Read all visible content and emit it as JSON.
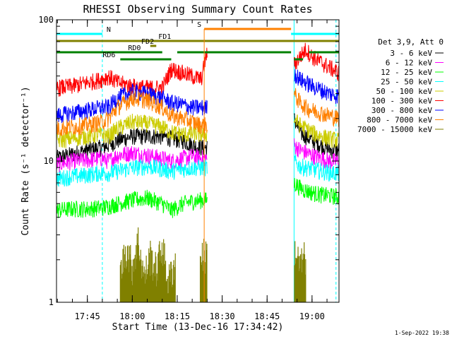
{
  "chart_data": {
    "type": "line",
    "title": "RHESSI Observing Summary Count Rates",
    "xlabel": "Start Time (13-Dec-16 17:34:42)",
    "ylabel": "Count Rate (s⁻¹ detector⁻¹)",
    "y_scale": "log",
    "ylim": [
      1,
      100
    ],
    "y_ticks": [
      {
        "value": 1,
        "label": "1"
      },
      {
        "value": 10,
        "label": "10"
      },
      {
        "value": 100,
        "label": "100"
      }
    ],
    "xlim": [
      "17:34:42",
      "19:09"
    ],
    "x_ticks": [
      {
        "value": "17:45",
        "label": "17:45"
      },
      {
        "value": "18:00",
        "label": "18:00"
      },
      {
        "value": "18:15",
        "label": "18:15"
      },
      {
        "value": "18:30",
        "label": "18:30"
      },
      {
        "value": "18:45",
        "label": "18:45"
      },
      {
        "value": "19:00",
        "label": "19:00"
      }
    ],
    "legend_header": "Det 3,9, Att 0",
    "legend_position": "right",
    "gaps": [
      {
        "from": "18:25",
        "to": "18:54"
      }
    ],
    "series": [
      {
        "name": "3 - 6 keV",
        "color": "#000000",
        "x": [
          "17:34:42",
          "17:40",
          "17:45",
          "17:50",
          "17:52",
          "17:55",
          "18:00",
          "18:05",
          "18:10",
          "18:13",
          "18:17",
          "18:20",
          "18:23",
          "18:25",
          "18:54",
          "18:56",
          "18:58",
          "19:00",
          "19:03",
          "19:06",
          "19:09"
        ],
        "y": [
          10.5,
          11.2,
          12,
          12.5,
          13,
          14,
          15,
          15,
          15,
          14.5,
          14,
          13,
          12.5,
          12.5,
          20,
          16,
          15,
          14,
          13,
          12,
          12
        ]
      },
      {
        "name": "6 - 12 keV",
        "color": "#ff00ff",
        "x": [
          "17:34:42",
          "17:40",
          "17:45",
          "17:50",
          "17:52",
          "17:55",
          "18:00",
          "18:05",
          "18:10",
          "18:13",
          "18:17",
          "18:20",
          "18:23",
          "18:25",
          "18:54",
          "18:56",
          "18:58",
          "19:00",
          "19:03",
          "19:06",
          "19:09"
        ],
        "y": [
          9.5,
          10,
          10.2,
          10.5,
          10,
          11,
          11.5,
          11,
          10.5,
          10,
          10.5,
          10.8,
          10.5,
          10.5,
          13,
          12,
          11.5,
          11,
          10.5,
          10,
          10
        ]
      },
      {
        "name": "12 - 25 keV",
        "color": "#00ff00",
        "x": [
          "17:34:42",
          "17:40",
          "17:45",
          "17:50",
          "17:52",
          "17:55",
          "18:00",
          "18:05",
          "18:10",
          "18:13",
          "18:17",
          "18:20",
          "18:23",
          "18:25",
          "18:54",
          "18:56",
          "18:58",
          "19:00",
          "19:03",
          "19:06",
          "19:09"
        ],
        "y": [
          4.5,
          4.6,
          4.6,
          4.7,
          4.8,
          5,
          5.3,
          5.5,
          5,
          4.5,
          5,
          5.2,
          5.3,
          5.3,
          7,
          6.5,
          6.2,
          6,
          5.8,
          5.7,
          5.6
        ]
      },
      {
        "name": "25 - 50 keV",
        "color": "#00ffff",
        "x": [
          "17:34:42",
          "17:40",
          "17:45",
          "17:50",
          "17:52",
          "17:55",
          "18:00",
          "18:05",
          "18:10",
          "18:13",
          "18:17",
          "18:20",
          "18:23",
          "18:25",
          "18:54",
          "18:56",
          "18:58",
          "19:00",
          "19:03",
          "19:06",
          "19:09"
        ],
        "y": [
          7.5,
          7.8,
          8,
          8.3,
          8.2,
          8.5,
          9,
          9.2,
          8.8,
          8.5,
          8.8,
          9,
          9,
          9,
          10,
          9.2,
          9,
          8.8,
          8.5,
          8.3,
          8.2
        ]
      },
      {
        "name": "50 - 100 keV",
        "color": "#cccc00",
        "x": [
          "17:34:42",
          "17:40",
          "17:45",
          "17:50",
          "17:52",
          "17:55",
          "18:00",
          "18:05",
          "18:10",
          "18:13",
          "18:17",
          "18:20",
          "18:23",
          "18:25",
          "18:54",
          "18:56",
          "18:58",
          "19:00",
          "19:03",
          "19:06",
          "19:09"
        ],
        "y": [
          14,
          14.5,
          15,
          15.5,
          15,
          17,
          19,
          18.5,
          17.5,
          16,
          15.5,
          15.5,
          15.5,
          15.5,
          20,
          18,
          17,
          16,
          15,
          14.5,
          14
        ]
      },
      {
        "name": "100 - 300 keV",
        "color": "#ff0000",
        "x": [
          "17:34:42",
          "17:40",
          "17:45",
          "17:50",
          "17:52",
          "17:55",
          "18:00",
          "18:05",
          "18:10",
          "18:13",
          "18:17",
          "18:20",
          "18:23",
          "18:25",
          "18:54",
          "18:56",
          "18:58",
          "19:00",
          "19:03",
          "19:06",
          "19:09"
        ],
        "y": [
          33,
          34,
          36,
          38,
          40,
          36,
          34,
          33,
          33,
          45,
          42,
          40,
          38,
          60,
          48,
          55,
          62,
          55,
          50,
          46,
          42
        ]
      },
      {
        "name": "300 - 800 keV",
        "color": "#0000ff",
        "x": [
          "17:34:42",
          "17:40",
          "17:45",
          "17:50",
          "17:52",
          "17:55",
          "18:00",
          "18:05",
          "18:10",
          "18:13",
          "18:17",
          "18:20",
          "18:23",
          "18:25",
          "18:54",
          "18:56",
          "18:58",
          "19:00",
          "19:03",
          "19:06",
          "19:09"
        ],
        "y": [
          21,
          22,
          23,
          24,
          24,
          28,
          31,
          30,
          28,
          26,
          25,
          24,
          24,
          24,
          42,
          38,
          36,
          34,
          32,
          30,
          29
        ]
      },
      {
        "name": "800 - 7000 keV",
        "color": "#ff8000",
        "x": [
          "17:34:42",
          "17:40",
          "17:45",
          "17:50",
          "17:52",
          "17:55",
          "18:00",
          "18:05",
          "18:10",
          "18:13",
          "18:17",
          "18:20",
          "18:23",
          "18:25",
          "18:54",
          "18:56",
          "18:58",
          "19:00",
          "19:03",
          "19:06",
          "19:09"
        ],
        "y": [
          17,
          17.5,
          18,
          19,
          20,
          24,
          28,
          27,
          24,
          21,
          20,
          19,
          18,
          18,
          30,
          26,
          24,
          23,
          22,
          21,
          20
        ]
      },
      {
        "name": "7000 - 15000 keV",
        "color": "#808000",
        "x": [
          "17:56",
          "17:58",
          "18:00",
          "18:02",
          "18:04",
          "18:06",
          "18:08",
          "18:10",
          "18:12",
          "18:14",
          "18:23",
          "18:54",
          "18:56",
          "18:58"
        ],
        "y": [
          1.6,
          2.5,
          1.8,
          2.8,
          1.5,
          2.2,
          1.7,
          2.6,
          1.4,
          1.9,
          2.2,
          2.5,
          1.8,
          2.2
        ]
      }
    ],
    "attenuator_segments": [
      {
        "label": "N",
        "color": "#00ffff",
        "from": "17:34:42",
        "to": "17:50"
      },
      {
        "label": "",
        "color": "#00ffff",
        "from": "18:53",
        "to": "19:09"
      },
      {
        "label": "S",
        "color": "#ff8000",
        "from": "18:24",
        "to": "18:53"
      },
      {
        "label": "FD1",
        "color": "#808000",
        "from": "17:34:42",
        "to": "19:09"
      },
      {
        "label": "FD2",
        "color": "#808000",
        "from": "18:06",
        "to": "18:08"
      },
      {
        "label": "RD0",
        "color": "#008000",
        "from": "17:34:42",
        "to": "18:10"
      },
      {
        "label": "",
        "color": "#008000",
        "from": "18:15",
        "to": "18:53"
      },
      {
        "label": "",
        "color": "#008000",
        "from": "18:59",
        "to": "19:09"
      },
      {
        "label": "RD6",
        "color": "#008000",
        "from": "17:56",
        "to": "18:13"
      },
      {
        "label": "",
        "color": "#008000",
        "from": "18:54",
        "to": "18:57"
      }
    ],
    "vertical_lines": [
      {
        "t": "17:50",
        "color": "#00ffff",
        "style": "dashed"
      },
      {
        "t": "18:54",
        "color": "#00ffff",
        "style": "solid"
      },
      {
        "t": "19:08",
        "color": "#00ffff",
        "style": "dashed"
      }
    ],
    "grid": false
  },
  "footer_stamp": "1-Sep-2022 19:38"
}
